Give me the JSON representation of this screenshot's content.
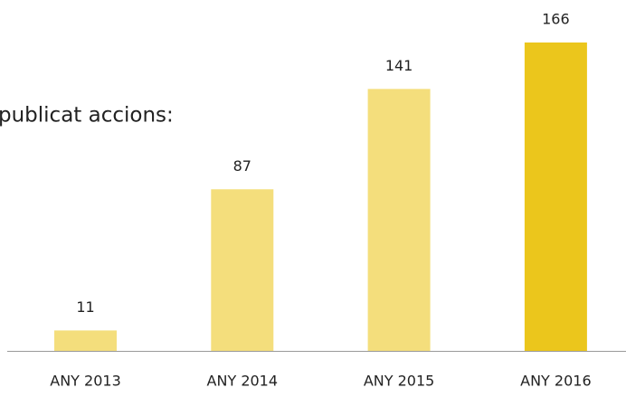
{
  "chart_data": {
    "type": "bar",
    "title": "publicat accions:",
    "categories": [
      "ANY 2013",
      "ANY 2014",
      "ANY 2015",
      "ANY 2016"
    ],
    "values": [
      11,
      87,
      141,
      166
    ],
    "colors": [
      "#f4de7c",
      "#f4de7c",
      "#f4de7c",
      "#ebc61c"
    ]
  }
}
